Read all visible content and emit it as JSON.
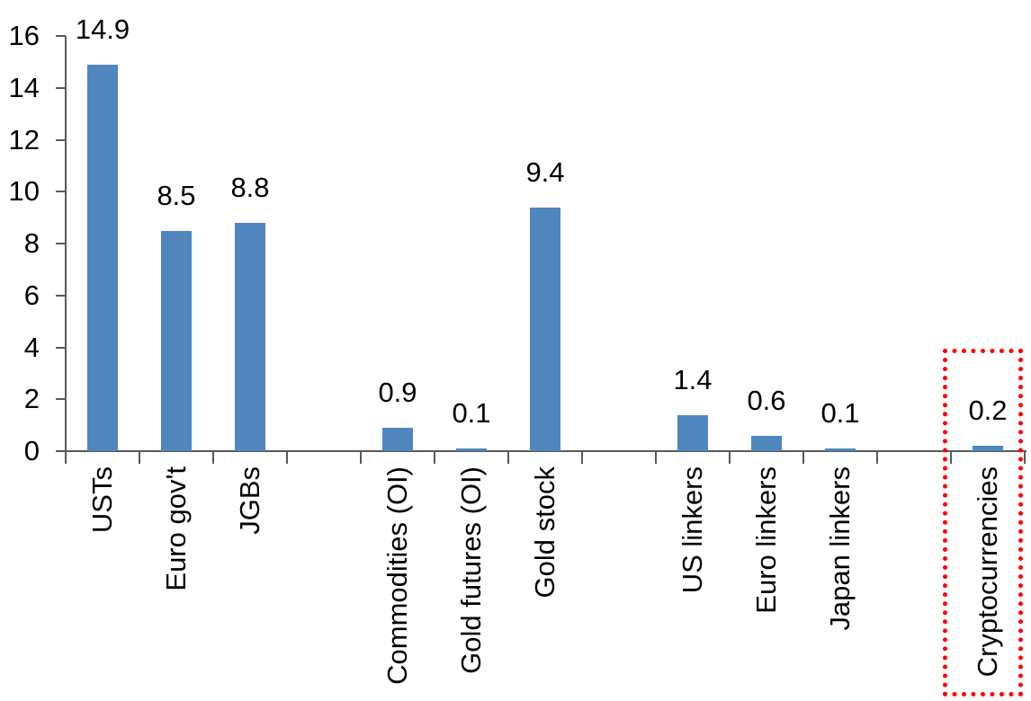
{
  "chart_data": {
    "type": "bar",
    "title": "",
    "xlabel": "",
    "ylabel": "",
    "grid": false,
    "legend": false,
    "bar_color": "#4f86bd",
    "axis_color": "#595959",
    "text_color": "#000000",
    "num_slots": 13,
    "y_axis": {
      "min": 0,
      "max": 16,
      "tick_step": 2,
      "tick_labels": [
        "0",
        "2",
        "4",
        "6",
        "8",
        "10",
        "12",
        "14",
        "16"
      ]
    },
    "bars": [
      {
        "category": "USTs",
        "value": 14.9,
        "label": "14.9",
        "slot": 0
      },
      {
        "category": "Euro gov't",
        "value": 8.5,
        "label": "8.5",
        "slot": 1
      },
      {
        "category": "JGBs",
        "value": 8.8,
        "label": "8.8",
        "slot": 2
      },
      {
        "category": "Commodities (OI)",
        "value": 0.9,
        "label": "0.9",
        "slot": 4
      },
      {
        "category": "Gold futures (OI)",
        "value": 0.1,
        "label": "0.1",
        "slot": 5
      },
      {
        "category": "Gold stock",
        "value": 9.4,
        "label": "9.4",
        "slot": 6
      },
      {
        "category": "US linkers",
        "value": 1.4,
        "label": "1.4",
        "slot": 8
      },
      {
        "category": "Euro linkers",
        "value": 0.6,
        "label": "0.6",
        "slot": 9
      },
      {
        "category": "Japan linkers",
        "value": 0.1,
        "label": "0.1",
        "slot": 10
      },
      {
        "category": "Cryptocurrencies",
        "value": 0.2,
        "label": "0.2",
        "slot": 12
      }
    ],
    "highlight": {
      "category": "Cryptocurrencies",
      "slot": 12,
      "style": "dotted-rectangle",
      "color": "#ff0000"
    }
  }
}
